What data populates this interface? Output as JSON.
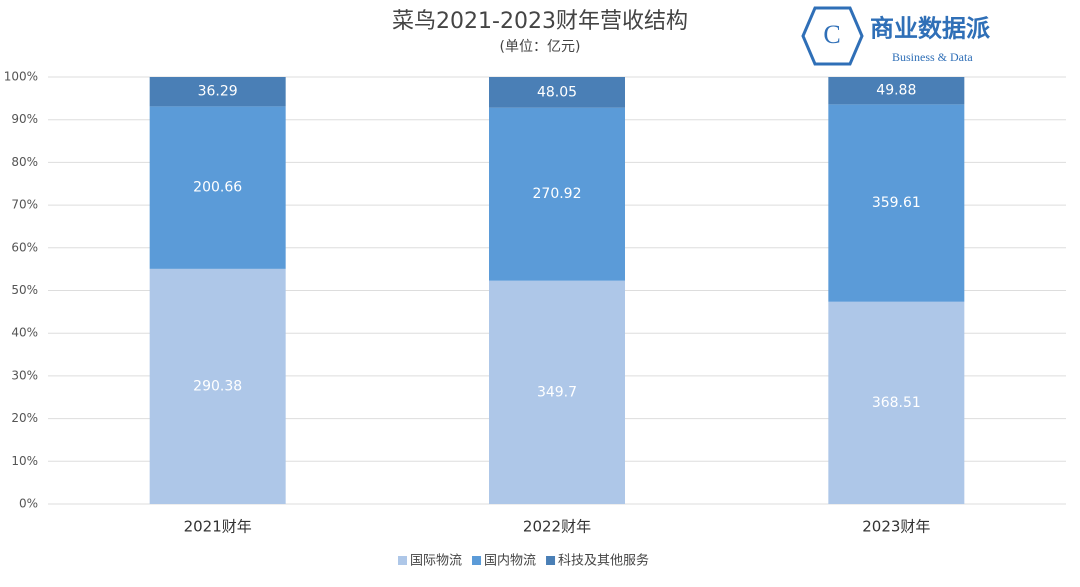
{
  "chart_data": {
    "type": "stacked_percent_bar",
    "title": "菜鸟2021-2023财年营收结构",
    "subtitle": "(单位：亿元)",
    "categories": [
      "2021财年",
      "2022财年",
      "2023财年"
    ],
    "series": [
      {
        "name": "国际物流",
        "color": "#aec7e8",
        "values": [
          290.38,
          349.7,
          368.51
        ]
      },
      {
        "name": "国内物流",
        "color": "#5b9bd8",
        "values": [
          200.66,
          270.92,
          359.61
        ]
      },
      {
        "name": "科技及其他服务",
        "color": "#4a7fb6",
        "values": [
          36.29,
          48.05,
          49.88
        ]
      }
    ],
    "ylim": [
      0,
      100
    ],
    "yticks": [
      {
        "value": 0,
        "label": "0%"
      },
      {
        "value": 10,
        "label": "10%"
      },
      {
        "value": 20,
        "label": "20%"
      },
      {
        "value": 30,
        "label": "30%"
      },
      {
        "value": 40,
        "label": "40%"
      },
      {
        "value": 50,
        "label": "50%"
      },
      {
        "value": 60,
        "label": "60%"
      },
      {
        "value": 70,
        "label": "70%"
      },
      {
        "value": 80,
        "label": "80%"
      },
      {
        "value": 90,
        "label": "90%"
      },
      {
        "value": 100,
        "label": "100%"
      }
    ],
    "grid": true,
    "legend": "bottom"
  },
  "logo": {
    "icon": "C",
    "name": "商业数据派",
    "tagline": "Business & Data"
  }
}
